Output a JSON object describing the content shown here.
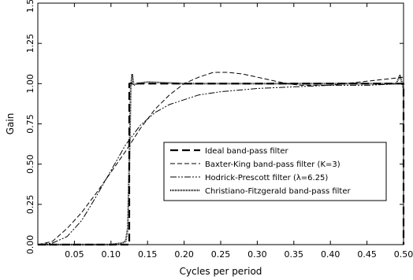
{
  "chart_data": {
    "type": "line",
    "xlabel": "Cycles per period",
    "ylabel": "Gain",
    "xlim": [
      0.0,
      0.5
    ],
    "ylim": [
      0.0,
      1.5
    ],
    "x_ticks": [
      "0.05",
      "0.10",
      "0.15",
      "0.20",
      "0.25",
      "0.30",
      "0.35",
      "0.40",
      "0.45",
      "0.50"
    ],
    "y_ticks": [
      "0.00",
      "0.25",
      "0.50",
      "0.75",
      "1.00",
      "1.25",
      "1.50"
    ],
    "grid": false,
    "legend_position": "lower-right",
    "series": [
      {
        "name": "Ideal band-pass filter",
        "style": "long-dash",
        "color": "#000000",
        "x": [
          0.0,
          0.125,
          0.125,
          0.5,
          0.5
        ],
        "y": [
          0.0,
          0.0,
          1.0,
          1.0,
          0.0
        ]
      },
      {
        "name": "Baxter-King band-pass filter (K=3)",
        "style": "short-dash",
        "color": "#000000",
        "x": [
          0.0,
          0.02,
          0.04,
          0.06,
          0.08,
          0.1,
          0.12,
          0.14,
          0.16,
          0.18,
          0.2,
          0.22,
          0.24,
          0.26,
          0.28,
          0.3,
          0.32,
          0.34,
          0.36,
          0.38,
          0.4,
          0.42,
          0.44,
          0.46,
          0.48,
          0.5
        ],
        "y": [
          0.0,
          0.02,
          0.1,
          0.2,
          0.32,
          0.45,
          0.58,
          0.72,
          0.84,
          0.93,
          1.0,
          1.04,
          1.07,
          1.07,
          1.06,
          1.04,
          1.02,
          1.0,
          0.99,
          0.99,
          0.99,
          1.0,
          1.01,
          1.02,
          1.03,
          1.04
        ]
      },
      {
        "name": "Hodrick-Prescott filter (λ=6.25)",
        "style": "dash-dot",
        "color": "#000000",
        "x": [
          0.0,
          0.02,
          0.04,
          0.06,
          0.08,
          0.1,
          0.12,
          0.14,
          0.16,
          0.18,
          0.2,
          0.22,
          0.25,
          0.3,
          0.35,
          0.4,
          0.45,
          0.5
        ],
        "y": [
          0.0,
          0.01,
          0.05,
          0.15,
          0.3,
          0.46,
          0.62,
          0.74,
          0.82,
          0.87,
          0.9,
          0.93,
          0.95,
          0.97,
          0.98,
          0.99,
          0.99,
          1.0
        ]
      },
      {
        "name": "Christiano-Fitzgerald band-pass filter",
        "style": "dotted",
        "color": "#000000",
        "x": [
          0.0,
          0.05,
          0.1,
          0.115,
          0.12,
          0.123,
          0.125,
          0.127,
          0.129,
          0.131,
          0.135,
          0.15,
          0.2,
          0.3,
          0.4,
          0.49,
          0.495,
          0.5
        ],
        "y": [
          0.0,
          0.0,
          0.0,
          0.01,
          0.02,
          0.1,
          0.5,
          0.98,
          1.06,
          0.99,
          1.0,
          1.01,
          1.0,
          1.0,
          1.0,
          1.0,
          1.05,
          0.97
        ]
      }
    ]
  }
}
